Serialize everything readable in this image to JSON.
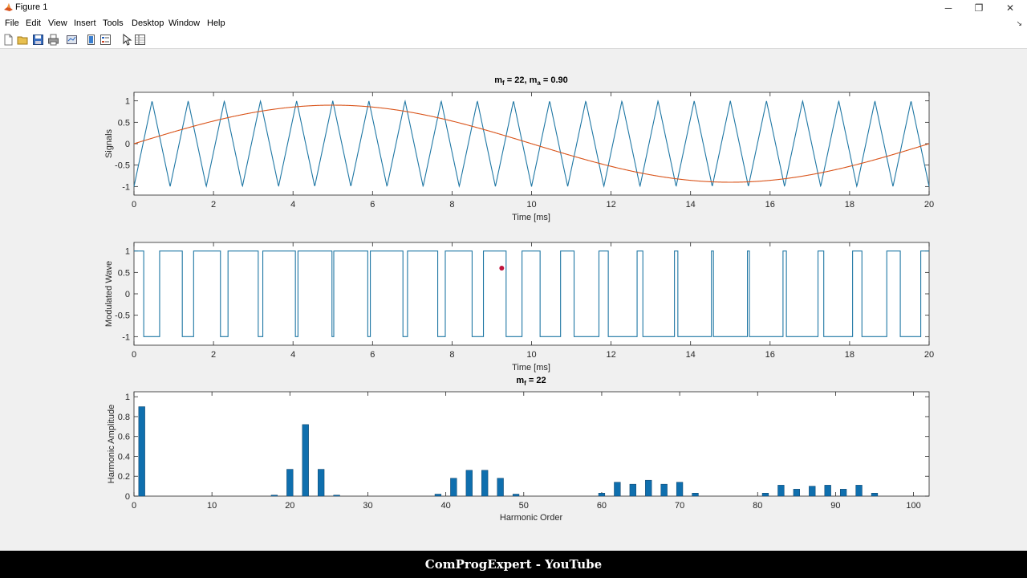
{
  "window": {
    "title": "Figure 1",
    "controls": {
      "minimize": "─",
      "restore": "❐",
      "close": "✕"
    }
  },
  "menu": {
    "items": [
      "File",
      "Edit",
      "View",
      "Insert",
      "Tools",
      "Desktop",
      "Window",
      "Help"
    ],
    "dock_arrow": "↘"
  },
  "toolbar": {
    "tools": [
      "new-figure-icon",
      "open-file-icon",
      "save-icon",
      "print-icon",
      "link-plot-icon",
      "colorbar-icon",
      "legend-icon",
      "edit-plot-arrow-icon",
      "property-inspector-icon"
    ]
  },
  "chart_data": [
    {
      "type": "line",
      "title": {
        "base": "m",
        "sub1": "f",
        "mid": " = 22, m",
        "sub2": "a",
        "tail": " = 0.90"
      },
      "xlabel": "Time [ms]",
      "ylabel": "Signals",
      "xlim": [
        0,
        20
      ],
      "ylim": [
        -1.2,
        1.2
      ],
      "xticks": [
        0,
        2,
        4,
        6,
        8,
        10,
        12,
        14,
        16,
        18,
        20
      ],
      "yticks": [
        -1,
        -0.5,
        0,
        0.5,
        1
      ],
      "ytick_labels": [
        "-1",
        "-0.5",
        "0",
        "0.5",
        "1"
      ],
      "series": [
        {
          "kind": "triangle-carrier",
          "frequency_khz": 1.1,
          "amplitude": 1,
          "color": "#1f77a4"
        },
        {
          "kind": "sine-reference",
          "frequency_khz": 0.05,
          "amplitude": 0.9,
          "color": "#d95319"
        }
      ]
    },
    {
      "type": "line",
      "xlabel": "Time [ms]",
      "ylabel": "Modulated Wave",
      "xlim": [
        0,
        20
      ],
      "ylim": [
        -1.2,
        1.2
      ],
      "xticks": [
        0,
        2,
        4,
        6,
        8,
        10,
        12,
        14,
        16,
        18,
        20
      ],
      "yticks": [
        -1,
        -0.5,
        0,
        0.5,
        1
      ],
      "ytick_labels": [
        "-1",
        "-0.5",
        "0",
        "0.5",
        "1"
      ],
      "series": [
        {
          "kind": "pwm",
          "levels": [
            -1,
            1
          ],
          "color": "#1f77a4"
        }
      ],
      "marker": {
        "x": 9.25,
        "y": 0.6,
        "color": "#c0143c"
      }
    },
    {
      "type": "bar",
      "title": {
        "base": "m",
        "sub1": "f",
        "mid": " = 22"
      },
      "xlabel": "Harmonic Order",
      "ylabel": "Harmonic Amplitude",
      "xlim": [
        0,
        102
      ],
      "ylim": [
        0,
        1.05
      ],
      "xticks": [
        0,
        10,
        20,
        30,
        40,
        50,
        60,
        70,
        80,
        90,
        100
      ],
      "yticks": [
        0,
        0.2,
        0.4,
        0.6,
        0.8,
        1
      ],
      "ytick_labels": [
        "0",
        "0.2",
        "0.4",
        "0.6",
        "0.8",
        "1"
      ],
      "bar_color": "#0f6fae",
      "x": [
        1,
        18,
        20,
        22,
        24,
        26,
        39,
        41,
        43,
        45,
        47,
        49,
        60,
        62,
        64,
        66,
        68,
        70,
        72,
        81,
        83,
        85,
        87,
        89,
        91,
        93,
        95
      ],
      "values": [
        0.9,
        0.01,
        0.27,
        0.72,
        0.27,
        0.01,
        0.02,
        0.18,
        0.26,
        0.26,
        0.18,
        0.02,
        0.03,
        0.14,
        0.12,
        0.16,
        0.12,
        0.14,
        0.03,
        0.03,
        0.11,
        0.07,
        0.1,
        0.11,
        0.07,
        0.11,
        0.03
      ]
    }
  ],
  "footer": {
    "text": "ComProgExpert - YouTube"
  }
}
